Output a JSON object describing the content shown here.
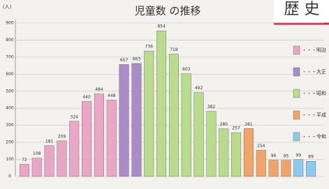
{
  "chart_data": {
    "type": "bar",
    "title": "児童数 の推移",
    "heading": "歴 史",
    "y_label": "(人)",
    "categories": [
      null,
      null,
      null,
      null,
      null,
      null,
      null,
      null,
      null,
      null,
      null,
      null,
      null,
      null,
      null,
      null,
      null,
      null,
      null,
      null,
      null,
      null,
      null,
      null
    ],
    "series": [
      {
        "name": "・・・明治",
        "color": "#eaa6c6",
        "values": [
          72,
          108,
          181,
          209,
          324,
          440,
          484,
          448,
          null,
          null,
          null,
          null,
          null,
          null,
          null,
          null,
          null,
          null,
          null,
          null,
          null,
          null,
          null,
          null
        ]
      },
      {
        "name": "・・・大正",
        "color": "#a98cc8",
        "values": [
          null,
          null,
          null,
          null,
          null,
          null,
          null,
          null,
          657,
          663,
          null,
          null,
          null,
          null,
          null,
          null,
          null,
          null,
          null,
          null,
          null,
          null,
          null,
          null
        ]
      },
      {
        "name": "・・・昭和",
        "color": "#b8dc8c",
        "values": [
          null,
          null,
          null,
          null,
          null,
          null,
          null,
          null,
          null,
          null,
          736,
          854,
          718,
          603,
          492,
          382,
          280,
          257,
          null,
          null,
          null,
          null,
          null,
          null
        ]
      },
      {
        "name": "・・・平成",
        "color": "#f2a468",
        "values": [
          null,
          null,
          null,
          null,
          null,
          null,
          null,
          null,
          null,
          null,
          null,
          null,
          null,
          null,
          null,
          null,
          null,
          null,
          281,
          154,
          96,
          95,
          null,
          null
        ]
      },
      {
        "name": "・・・令和",
        "color": "#8ccaee",
        "values": [
          null,
          null,
          null,
          null,
          null,
          null,
          null,
          null,
          null,
          null,
          null,
          null,
          null,
          null,
          null,
          null,
          null,
          null,
          null,
          null,
          null,
          null,
          99,
          89
        ]
      }
    ],
    "ylim": [
      0,
      900
    ],
    "yticks": [
      0,
      100,
      200,
      300,
      400,
      500,
      600,
      700,
      800,
      900
    ],
    "grid": true,
    "legend": "right"
  }
}
